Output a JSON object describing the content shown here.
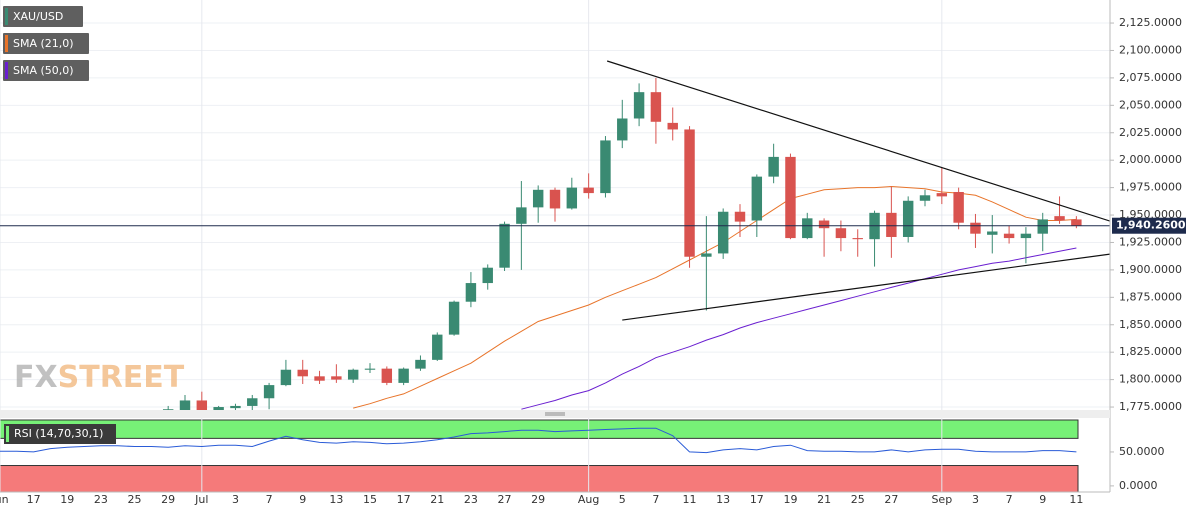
{
  "chart_data": {
    "type": "candlestick",
    "categories": [
      "Jun",
      null,
      "17",
      null,
      "19",
      null,
      "23",
      null,
      "25",
      null,
      "29",
      null,
      "Jul",
      null,
      "3",
      null,
      "7",
      null,
      "9",
      null,
      "13",
      null,
      "15",
      null,
      "17",
      null,
      "21",
      null,
      "23",
      null,
      "27",
      null,
      "29",
      null,
      null,
      "Aug",
      null,
      "5",
      null,
      "7",
      null,
      "11",
      null,
      "13",
      null,
      "17",
      null,
      "19",
      null,
      "21",
      null,
      "25",
      null,
      "27",
      null,
      null,
      "Sep",
      null,
      "3",
      null,
      "7",
      null,
      "9",
      null,
      "11"
    ],
    "xlim": [
      0,
      66
    ],
    "symbol": {
      "name": "XAU/USD",
      "up_color": "#3a8a72",
      "down_color": "#d9534f"
    },
    "open": [
      null,
      null,
      null,
      null,
      null,
      null,
      null,
      null,
      null,
      null,
      1771,
      1772,
      1781,
      1770,
      1774,
      1776,
      1783,
      1795,
      1809,
      1803,
      1803,
      1800,
      1809,
      1810,
      1797,
      1810,
      1818,
      1841,
      1871,
      1888,
      1902,
      1942,
      1957,
      1973,
      1956,
      1975,
      1970,
      2018,
      2038,
      2062,
      2034,
      2028,
      1912,
      1915,
      1953,
      1945,
      1985,
      2003,
      1929,
      1945,
      1938,
      1929,
      1928,
      1952,
      1930,
      1963,
      1970,
      1971,
      1943,
      1932,
      1933,
      1929,
      1933,
      1949,
      1946
    ],
    "high": [
      null,
      null,
      null,
      null,
      null,
      null,
      null,
      null,
      null,
      null,
      1776,
      1786,
      1789,
      1776,
      1778,
      1786,
      1797,
      1818,
      1818,
      1808,
      1814,
      1810,
      1815,
      1812,
      1811,
      1822,
      1843,
      1872,
      1898,
      1905,
      1944,
      1981,
      1977,
      1975,
      1984,
      1988,
      2022,
      2055,
      2070,
      2075,
      2048,
      2031,
      1949,
      1956,
      1960,
      1987,
      2015,
      2006,
      1952,
      1947,
      1945,
      1937,
      1954,
      1976,
      1967,
      1973,
      1993,
      1975,
      1951,
      1950,
      1940,
      1939,
      1952,
      1967,
      1949
    ],
    "low": [
      null,
      null,
      null,
      null,
      null,
      null,
      null,
      null,
      null,
      null,
      1763,
      1767,
      1763,
      1758,
      1770,
      1771,
      1773,
      1794,
      1796,
      1796,
      1797,
      1797,
      1806,
      1795,
      1795,
      1808,
      1817,
      1840,
      1866,
      1882,
      1899,
      1900,
      1943,
      1944,
      1955,
      1965,
      1966,
      2011,
      2031,
      2015,
      2018,
      1902,
      1863,
      1910,
      1930,
      1930,
      1979,
      1928,
      1928,
      1912,
      1917,
      1912,
      1903,
      1911,
      1925,
      1958,
      1960,
      1937,
      1920,
      1915,
      1924,
      1906,
      1917,
      1942,
      1938
    ],
    "close": [
      null,
      null,
      null,
      null,
      null,
      null,
      null,
      null,
      null,
      null,
      1773,
      1781,
      1770,
      1775,
      1776,
      1783,
      1795,
      1809,
      1803,
      1799,
      1800,
      1809,
      1810,
      1797,
      1810,
      1818,
      1841,
      1871,
      1888,
      1902,
      1942,
      1957,
      1973,
      1956,
      1975,
      1970,
      2018,
      2038,
      2062,
      2035,
      2028,
      1912,
      1915,
      1953,
      1944,
      1985,
      2003,
      1929,
      1947,
      1938,
      1929,
      1928,
      1952,
      1930,
      1963,
      1968,
      1967,
      1943,
      1933,
      1935,
      1929,
      1933,
      1946,
      1945,
      1940.26
    ],
    "series": [
      {
        "name": "SMA (21,0)",
        "color": "#e8742a",
        "values": [
          null,
          null,
          null,
          null,
          null,
          null,
          null,
          null,
          null,
          null,
          null,
          null,
          null,
          null,
          null,
          null,
          null,
          null,
          null,
          null,
          null,
          1774,
          1778,
          1783,
          1787,
          1794,
          1801,
          1808,
          1815,
          1825,
          1835,
          1844,
          1853,
          1858,
          1863,
          1868,
          1875,
          1881,
          1887,
          1893,
          1901,
          1909,
          1917,
          1925,
          1935,
          1945,
          1955,
          1965,
          1969,
          1973,
          1974,
          1975,
          1975,
          1976,
          1975,
          1974,
          1971,
          1970,
          1968,
          1962,
          1955,
          1948,
          1945,
          1945,
          1946
        ]
      },
      {
        "name": "SMA (50,0)",
        "color": "#6a1fd0",
        "values": [
          null,
          null,
          null,
          null,
          null,
          null,
          null,
          null,
          null,
          null,
          null,
          null,
          null,
          null,
          null,
          null,
          null,
          null,
          null,
          null,
          null,
          null,
          null,
          null,
          null,
          null,
          null,
          null,
          null,
          null,
          null,
          1773,
          1777,
          1781,
          1786,
          1790,
          1797,
          1805,
          1812,
          1820,
          1825,
          1830,
          1836,
          1841,
          1847,
          1852,
          1856,
          1860,
          1864,
          1868,
          1872,
          1876,
          1880,
          1884,
          1888,
          1892,
          1896,
          1900,
          1903,
          1906,
          1908,
          1911,
          1914,
          1917,
          1920
        ]
      }
    ],
    "ylim": [
      1772.3,
      2146
    ],
    "yticks": [
      {
        "value": 1775,
        "label": "1,775.0000"
      },
      {
        "value": 1800,
        "label": "1,800.0000"
      },
      {
        "value": 1825,
        "label": "1,825.0000"
      },
      {
        "value": 1850,
        "label": "1,850.0000"
      },
      {
        "value": 1875,
        "label": "1,875.0000"
      },
      {
        "value": 1900,
        "label": "1,900.0000"
      },
      {
        "value": 1925,
        "label": "1,925.0000"
      },
      {
        "value": 1950,
        "label": "1,950.0000"
      },
      {
        "value": 1975,
        "label": "1,975.0000"
      },
      {
        "value": 2000,
        "label": "2,000.0000"
      },
      {
        "value": 2025,
        "label": "2,025.0000"
      },
      {
        "value": 2050,
        "label": "2,050.0000"
      },
      {
        "value": 2075,
        "label": "2,075.0000"
      },
      {
        "value": 2100,
        "label": "2,100.0000"
      },
      {
        "value": 2125,
        "label": "2,125.0000"
      }
    ],
    "grid": true,
    "last_price": {
      "value": 1940.26,
      "label": "1,940.2600"
    },
    "trendlines": [
      {
        "x": [
          36.1,
          66
        ],
        "y": [
          2090.4,
          1944.5
        ]
      },
      {
        "x": [
          37.0,
          66
        ],
        "y": [
          1854.3,
          1914.4
        ]
      }
    ],
    "watermark": [
      "FX",
      "STREET"
    ],
    "rsi": {
      "name": "RSI (14,70,30,1)",
      "color": "#2a5bd7",
      "overbought": 70,
      "oversold": 30,
      "ylim": [
        -9,
        100
      ],
      "yticks": [
        {
          "value": 0,
          "label": "0.0000"
        },
        {
          "value": 50,
          "label": "50.0000"
        }
      ],
      "values": [
        51,
        51,
        50,
        55,
        57,
        58,
        59,
        59,
        58,
        58,
        57,
        59,
        58,
        60,
        60,
        58,
        66,
        73,
        68,
        64,
        63,
        65,
        64,
        62,
        63,
        65,
        68,
        72,
        77,
        78,
        80,
        82,
        82,
        80,
        81,
        82,
        83,
        84,
        85,
        85,
        74,
        50,
        49,
        53,
        55,
        53,
        58,
        60,
        52,
        51,
        51,
        50,
        50,
        53,
        50,
        53,
        54,
        54,
        51,
        50,
        50,
        50,
        52,
        52,
        50
      ]
    }
  }
}
